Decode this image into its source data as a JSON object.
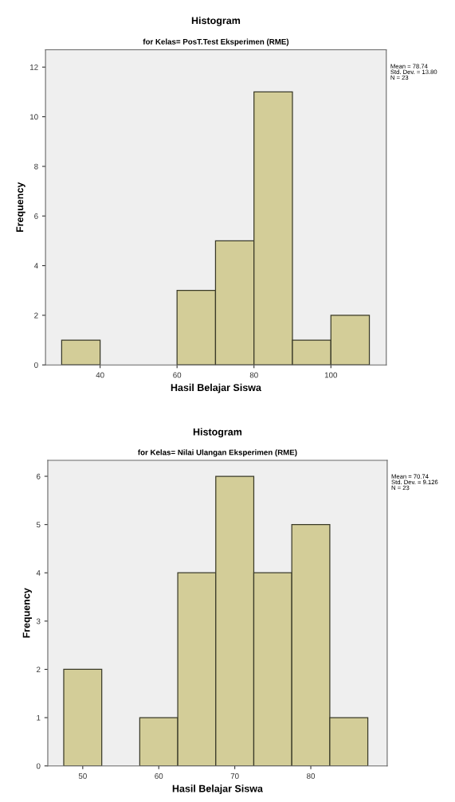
{
  "chart_data": [
    {
      "type": "histogram",
      "title": "Histogram",
      "subtitle": "for Kelas= PosT.Test Eksperimen (RME)",
      "xlabel": "Hasil Belajar Siswa",
      "ylabel": "Frequency",
      "bins": [
        30,
        40,
        50,
        60,
        70,
        80,
        90,
        100,
        110
      ],
      "values": [
        1,
        0,
        0,
        3,
        5,
        11,
        1,
        2
      ],
      "color": "#d3cd98",
      "xlim": [
        25.8,
        114.4
      ],
      "xticks": [
        40,
        60,
        80,
        100
      ],
      "ylim": [
        0,
        12.7
      ],
      "yticks": [
        0,
        2,
        4,
        6,
        8,
        10,
        12
      ],
      "grid": false,
      "annotations": [
        "Mean = 78.74\nStd. Dev. = 13.80\nN = 23"
      ]
    },
    {
      "type": "histogram",
      "title": "Histogram",
      "subtitle": "for Kelas= Nilai Ulangan Eksperimen (RME)",
      "xlabel": "Hasil Belajar Siswa",
      "ylabel": "Frequency",
      "bins": [
        47.5,
        52.5,
        57.5,
        62.5,
        67.5,
        72.5,
        77.5,
        82.5,
        87.5
      ],
      "values": [
        2,
        0,
        1,
        4,
        6,
        4,
        5,
        1
      ],
      "color": "#d3cd98",
      "xlim": [
        45.4,
        90.05
      ],
      "xticks": [
        50,
        60,
        70,
        80
      ],
      "ylim": [
        0,
        6.33
      ],
      "yticks": [
        0,
        1,
        2,
        3,
        4,
        5,
        6
      ],
      "grid": false,
      "annotations": [
        "Mean = 70.74\nStd. Dev. = 9.126\nN = 23"
      ]
    }
  ]
}
